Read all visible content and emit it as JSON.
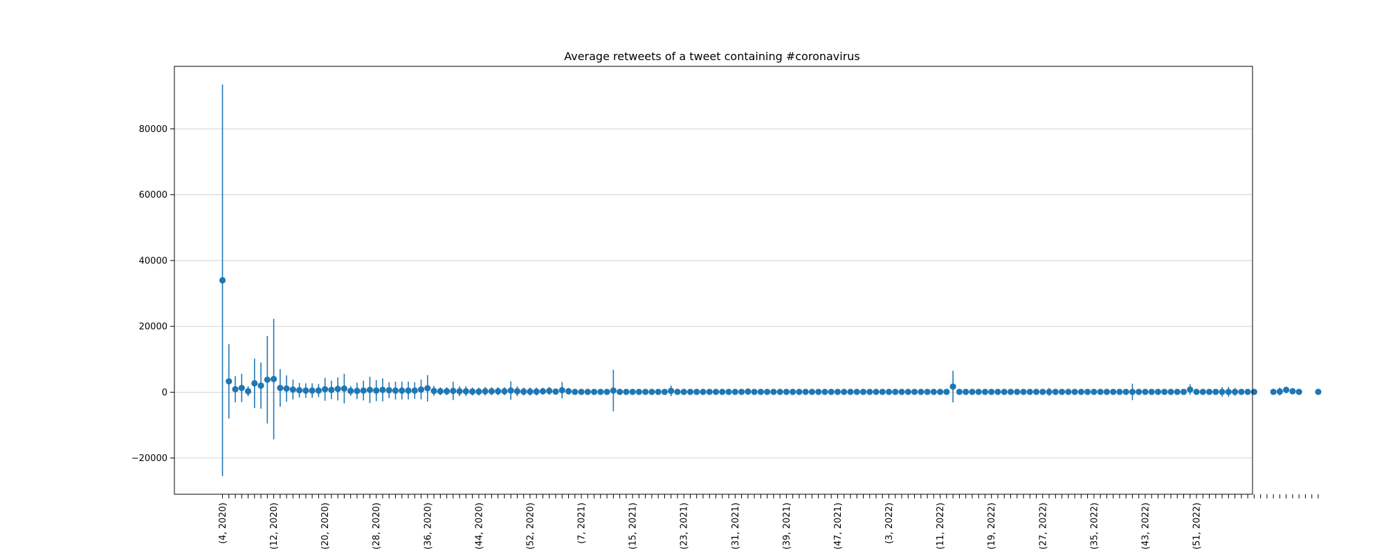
{
  "chart_data": {
    "type": "scatter",
    "title": "Average retweets of a tweet containing #coronavirus",
    "xlabel": "",
    "ylabel": "",
    "ylim": [
      -31000,
      99000
    ],
    "y_ticks": [
      -20000,
      0,
      20000,
      40000,
      60000,
      80000
    ],
    "y_tick_labels": [
      "−20000",
      "0",
      "20000",
      "40000",
      "60000",
      "80000"
    ],
    "grid": "y-axis only",
    "error_bars": true,
    "color": "#1f77b4",
    "x_start": {
      "week": 4,
      "year": 2020
    },
    "x_tick_labels": [
      "(4, 2020)",
      "(12, 2020)",
      "(20, 2020)",
      "(28, 2020)",
      "(36, 2020)",
      "(44, 2020)",
      "(52, 2020)",
      "(7, 2021)",
      "(15, 2021)",
      "(23, 2021)",
      "(31, 2021)",
      "(39, 2021)",
      "(47, 2021)",
      "(3, 2022)",
      "(11, 2022)",
      "(19, 2022)",
      "(27, 2022)",
      "(35, 2022)",
      "(43, 2022)",
      "(51, 2022)"
    ],
    "series": [
      {
        "name": "",
        "points": [
          [
            0,
            34000,
            59500
          ],
          [
            1,
            3300,
            11300
          ],
          [
            2,
            900,
            4000
          ],
          [
            3,
            1300,
            4300
          ],
          [
            4,
            300,
            1500
          ],
          [
            5,
            2700,
            7500
          ],
          [
            6,
            2000,
            7000
          ],
          [
            7,
            3800,
            13300
          ],
          [
            8,
            4000,
            18300
          ],
          [
            9,
            1300,
            5700
          ],
          [
            10,
            1100,
            4000
          ],
          [
            11,
            800,
            3000
          ],
          [
            12,
            600,
            2200
          ],
          [
            13,
            500,
            2200
          ],
          [
            14,
            500,
            2200
          ],
          [
            15,
            500,
            2000
          ],
          [
            16,
            900,
            3500
          ],
          [
            17,
            700,
            2800
          ],
          [
            18,
            1000,
            3500
          ],
          [
            19,
            1100,
            4500
          ],
          [
            20,
            400,
            1500
          ],
          [
            21,
            400,
            2500
          ],
          [
            22,
            500,
            3000
          ],
          [
            23,
            700,
            4000
          ],
          [
            24,
            500,
            3200
          ],
          [
            25,
            700,
            3500
          ],
          [
            26,
            600,
            2400
          ],
          [
            27,
            500,
            2700
          ],
          [
            28,
            500,
            2700
          ],
          [
            29,
            500,
            2700
          ],
          [
            30,
            500,
            2500
          ],
          [
            31,
            800,
            3000
          ],
          [
            32,
            1200,
            4000
          ],
          [
            33,
            400,
            1500
          ],
          [
            34,
            300,
            1200
          ],
          [
            35,
            300,
            1200
          ],
          [
            36,
            400,
            2800
          ],
          [
            37,
            300,
            1500
          ],
          [
            38,
            300,
            1500
          ],
          [
            39,
            200,
            1200
          ],
          [
            40,
            200,
            1200
          ],
          [
            41,
            300,
            1300
          ],
          [
            42,
            300,
            1200
          ],
          [
            43,
            300,
            1200
          ],
          [
            44,
            300,
            1200
          ],
          [
            45,
            500,
            2800
          ],
          [
            46,
            300,
            1500
          ],
          [
            47,
            200,
            1200
          ],
          [
            48,
            200,
            1200
          ],
          [
            49,
            200,
            1200
          ],
          [
            50,
            300,
            1000
          ],
          [
            51,
            400,
            1200
          ],
          [
            52,
            200,
            900
          ],
          [
            53,
            600,
            2500
          ],
          [
            54,
            300,
            1000
          ],
          [
            55,
            100,
            400
          ],
          [
            56,
            100,
            400
          ],
          [
            57,
            100,
            400
          ],
          [
            58,
            100,
            400
          ],
          [
            59,
            100,
            400
          ],
          [
            60,
            100,
            400
          ],
          [
            61,
            500,
            6300
          ],
          [
            62,
            100,
            400
          ],
          [
            63,
            100,
            400
          ],
          [
            64,
            100,
            400
          ],
          [
            65,
            100,
            400
          ],
          [
            66,
            100,
            400
          ],
          [
            67,
            100,
            400
          ],
          [
            68,
            100,
            400
          ],
          [
            69,
            100,
            700
          ],
          [
            70,
            400,
            1600
          ],
          [
            71,
            100,
            400
          ],
          [
            72,
            100,
            400
          ],
          [
            73,
            100,
            400
          ],
          [
            74,
            100,
            400
          ],
          [
            75,
            100,
            400
          ],
          [
            76,
            100,
            400
          ],
          [
            77,
            100,
            400
          ],
          [
            78,
            100,
            400
          ],
          [
            79,
            100,
            400
          ],
          [
            80,
            100,
            400
          ],
          [
            81,
            100,
            400
          ],
          [
            82,
            200,
            800
          ],
          [
            83,
            100,
            400
          ],
          [
            84,
            100,
            400
          ],
          [
            85,
            100,
            400
          ],
          [
            86,
            100,
            400
          ],
          [
            87,
            100,
            400
          ],
          [
            88,
            100,
            400
          ],
          [
            89,
            100,
            400
          ],
          [
            90,
            100,
            400
          ],
          [
            91,
            100,
            400
          ],
          [
            92,
            100,
            400
          ],
          [
            93,
            100,
            400
          ],
          [
            94,
            100,
            400
          ],
          [
            95,
            100,
            400
          ],
          [
            96,
            100,
            400
          ],
          [
            97,
            100,
            400
          ],
          [
            98,
            100,
            400
          ],
          [
            99,
            100,
            400
          ],
          [
            100,
            100,
            400
          ],
          [
            101,
            100,
            400
          ],
          [
            102,
            100,
            400
          ],
          [
            103,
            100,
            400
          ],
          [
            104,
            100,
            400
          ],
          [
            105,
            100,
            400
          ],
          [
            106,
            100,
            400
          ],
          [
            107,
            100,
            400
          ],
          [
            108,
            100,
            400
          ],
          [
            109,
            100,
            400
          ],
          [
            110,
            100,
            400
          ],
          [
            111,
            100,
            400
          ],
          [
            112,
            100,
            400
          ],
          [
            113,
            100,
            400
          ],
          [
            114,
            1700,
            4800
          ],
          [
            115,
            100,
            400
          ],
          [
            116,
            100,
            400
          ],
          [
            117,
            100,
            400
          ],
          [
            118,
            100,
            400
          ],
          [
            119,
            100,
            400
          ],
          [
            120,
            100,
            400
          ],
          [
            121,
            100,
            400
          ],
          [
            122,
            100,
            400
          ],
          [
            123,
            100,
            400
          ],
          [
            124,
            100,
            400
          ],
          [
            125,
            100,
            400
          ],
          [
            126,
            100,
            400
          ],
          [
            127,
            100,
            400
          ],
          [
            128,
            100,
            600
          ],
          [
            129,
            100,
            1200
          ],
          [
            130,
            100,
            400
          ],
          [
            131,
            100,
            400
          ],
          [
            132,
            100,
            400
          ],
          [
            133,
            100,
            400
          ],
          [
            134,
            100,
            400
          ],
          [
            135,
            100,
            400
          ],
          [
            136,
            100,
            400
          ],
          [
            137,
            100,
            400
          ],
          [
            138,
            100,
            400
          ],
          [
            139,
            100,
            500
          ],
          [
            140,
            100,
            400
          ],
          [
            141,
            100,
            400
          ],
          [
            142,
            100,
            2500
          ],
          [
            143,
            100,
            700
          ],
          [
            144,
            100,
            400
          ],
          [
            145,
            100,
            400
          ],
          [
            146,
            100,
            700
          ],
          [
            147,
            100,
            400
          ],
          [
            148,
            100,
            400
          ],
          [
            149,
            100,
            400
          ],
          [
            150,
            100,
            400
          ],
          [
            151,
            800,
            1600
          ],
          [
            152,
            100,
            400
          ],
          [
            153,
            100,
            400
          ],
          [
            154,
            100,
            400
          ],
          [
            155,
            100,
            400
          ],
          [
            156,
            100,
            1500
          ],
          [
            157,
            100,
            1500
          ],
          [
            158,
            100,
            1200
          ],
          [
            159,
            100,
            400
          ],
          [
            160,
            100,
            400
          ],
          [
            161,
            100,
            400
          ],
          [
            164,
            100,
            400
          ],
          [
            165,
            200,
            1200
          ],
          [
            166,
            700,
            1000
          ],
          [
            167,
            300,
            700
          ],
          [
            168,
            100,
            400
          ],
          [
            171,
            100,
            400
          ]
        ]
      }
    ]
  }
}
